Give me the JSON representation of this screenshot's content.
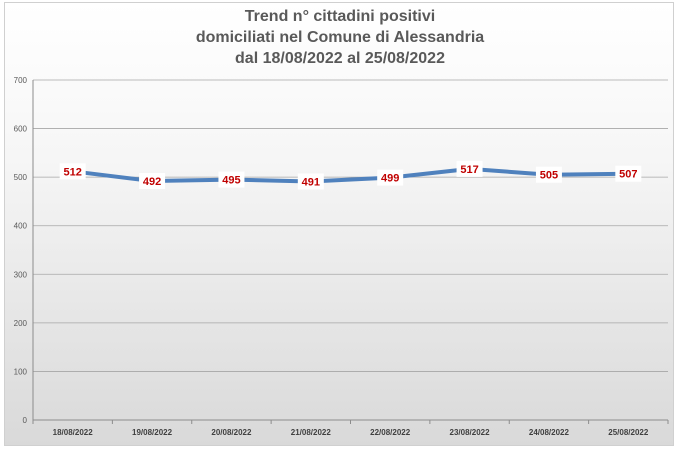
{
  "chart_data": {
    "type": "line",
    "title_lines": [
      "Trend n° cittadini positivi",
      "domiciliati nel Comune di Alessandria",
      "dal 18/08/2022 al 25/08/2022"
    ],
    "categories": [
      "18/08/2022",
      "19/08/2022",
      "20/08/2022",
      "21/08/2022",
      "22/08/2022",
      "23/08/2022",
      "24/08/2022",
      "25/08/2022"
    ],
    "series": [
      {
        "values": [
          512,
          492,
          495,
          491,
          499,
          517,
          505,
          507
        ],
        "color": "#4f81bd"
      }
    ],
    "ylim": [
      0,
      700
    ],
    "yticks": [
      "0",
      "100",
      "200",
      "300",
      "400",
      "500",
      "600",
      "700"
    ],
    "grid": true,
    "data_labels": true,
    "legend": "none",
    "label_color": "#c00000"
  }
}
